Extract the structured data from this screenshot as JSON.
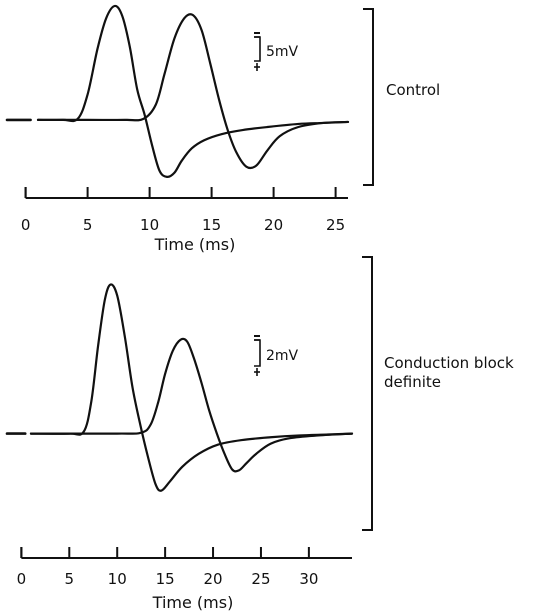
{
  "chart_data": [
    {
      "type": "line",
      "condition_label": "Control",
      "xlabel": "Time (ms)",
      "xticks": [
        0,
        5,
        10,
        15,
        20,
        25
      ],
      "xlim": [
        -1.5,
        26
      ],
      "ylim": [
        -6.5,
        11
      ],
      "scale_bar": {
        "label": "5mV",
        "value": 5
      },
      "series": [
        {
          "x": [
            -1.5,
            0.4
          ],
          "y": [
            0,
            0
          ]
        },
        {
          "x": [
            1.0,
            3.0,
            4.2,
            5.0,
            5.8,
            6.5,
            7.2,
            7.8,
            8.4,
            9.0,
            9.6,
            10.2,
            10.8,
            11.4,
            12.0,
            12.6,
            13.4,
            14.4,
            15.8,
            17.5,
            19.5,
            22.0,
            24.0,
            26.0
          ],
          "y": [
            0,
            0,
            0.1,
            2.5,
            7.0,
            10.0,
            11.2,
            10.2,
            7.2,
            3.0,
            0.5,
            -2.5,
            -5.0,
            -5.6,
            -5.2,
            -4.0,
            -2.8,
            -2.0,
            -1.4,
            -1.0,
            -0.7,
            -0.4,
            -0.3,
            -0.2
          ]
        },
        {
          "x": [
            1.0,
            5.0,
            8.0,
            9.5,
            10.5,
            11.2,
            12.0,
            12.8,
            13.5,
            14.2,
            14.9,
            15.6,
            16.3,
            17.0,
            17.8,
            18.6,
            19.5,
            20.5,
            22.0,
            24.0,
            26.0
          ],
          "y": [
            0,
            0,
            0,
            0.1,
            1.5,
            4.5,
            8.0,
            10.0,
            10.3,
            8.8,
            5.5,
            2.0,
            -1.0,
            -3.2,
            -4.6,
            -4.5,
            -3.0,
            -1.6,
            -0.7,
            -0.3,
            -0.2
          ]
        }
      ]
    },
    {
      "type": "line",
      "condition_label": "Conduction block definite",
      "xlabel": "Time (ms)",
      "xticks": [
        0,
        5,
        10,
        15,
        20,
        25,
        30
      ],
      "xlim": [
        -1.5,
        34.5
      ],
      "ylim": [
        -7,
        18
      ],
      "scale_bar": {
        "label": "2mV",
        "value": 2
      },
      "series": [
        {
          "x": [
            -1.5,
            0.4
          ],
          "y": [
            0,
            0
          ]
        },
        {
          "x": [
            1.0,
            5.0,
            6.5,
            7.3,
            8.0,
            8.7,
            9.3,
            10.0,
            10.8,
            11.6,
            12.4,
            13.2,
            14.0,
            14.6,
            15.5,
            16.8,
            18.5,
            20.5,
            23.0,
            26.0,
            29.0,
            32.0,
            34.5
          ],
          "y": [
            0,
            0,
            0.2,
            3.5,
            9.5,
            14.5,
            16.2,
            15.0,
            10.5,
            5.0,
            1.0,
            -2.5,
            -5.5,
            -6.2,
            -5.2,
            -3.6,
            -2.2,
            -1.2,
            -0.7,
            -0.4,
            -0.2,
            -0.1,
            0.0
          ]
        },
        {
          "x": [
            1.0,
            10.0,
            12.5,
            13.5,
            14.3,
            15.0,
            15.8,
            16.6,
            17.3,
            18.0,
            18.8,
            19.6,
            20.4,
            21.2,
            22.0,
            22.7,
            23.5,
            24.5,
            26.0,
            28.0,
            31.0,
            34.5
          ],
          "y": [
            0,
            0,
            0.1,
            1.0,
            3.5,
            6.5,
            9.0,
            10.2,
            10.0,
            8.2,
            5.5,
            2.5,
            0.0,
            -2.2,
            -3.9,
            -4.0,
            -3.2,
            -2.2,
            -1.1,
            -0.5,
            -0.2,
            0.0
          ]
        }
      ]
    }
  ]
}
